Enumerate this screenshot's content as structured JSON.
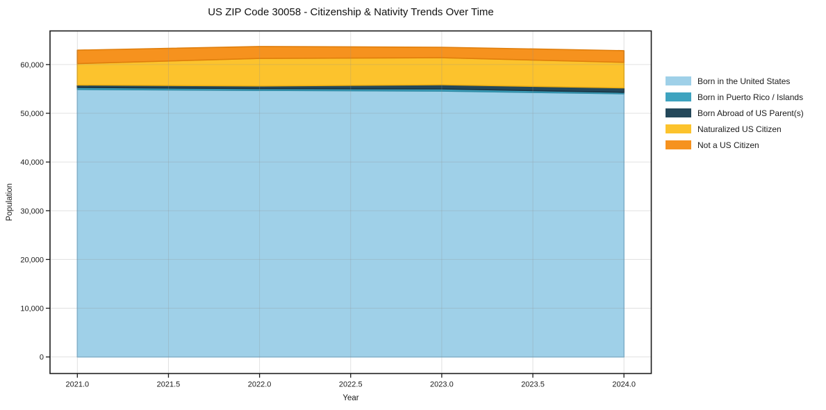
{
  "title": "US ZIP Code 30058 - Citizenship & Nativity Trends Over Time",
  "chart_data": {
    "type": "area",
    "stacked": true,
    "title": "US ZIP Code 30058 - Citizenship & Nativity Trends Over Time",
    "xlabel": "Year",
    "ylabel": "Population",
    "x": [
      2021,
      2022,
      2023,
      2024
    ],
    "series": [
      {
        "id": "born-in-us",
        "name": "Born in the United States",
        "color": "#9FD0E8",
        "edge": "#83BBD9",
        "values": [
          54900,
          54700,
          54550,
          54000
        ]
      },
      {
        "id": "born-in-pr-islands",
        "name": "Born in Puerto Rico / Islands",
        "color": "#3EA3BF",
        "edge": "#2F8BA5",
        "values": [
          400,
          350,
          450,
          300
        ]
      },
      {
        "id": "born-abroad-us-parent",
        "name": "Born Abroad of US Parent(s)",
        "color": "#24485A",
        "edge": "#193341",
        "values": [
          500,
          550,
          850,
          900
        ]
      },
      {
        "id": "naturalized-citizen",
        "name": "Naturalized US Citizen",
        "color": "#FCC32D",
        "edge": "#EDAE13",
        "values": [
          4400,
          5650,
          5550,
          5250
        ]
      },
      {
        "id": "not-us-citizen",
        "name": "Not a US Citizen",
        "color": "#F6921E",
        "edge": "#E07E0C",
        "values": [
          2750,
          2450,
          2150,
          2400
        ]
      }
    ],
    "xticks": [
      2021.0,
      2021.5,
      2022.0,
      2022.5,
      2023.0,
      2023.5,
      2024.0
    ],
    "xtick_labels": [
      "2021.0",
      "2021.5",
      "2022.0",
      "2022.5",
      "2023.0",
      "2023.5",
      "2024.0"
    ],
    "yticks": [
      0,
      10000,
      20000,
      30000,
      40000,
      50000,
      60000
    ],
    "ytick_labels": [
      "0",
      "10,000",
      "20,000",
      "30,000",
      "40,000",
      "50,000",
      "60,000"
    ],
    "xlim": [
      2020.85,
      2024.15
    ],
    "ylim": [
      -3400,
      66900
    ],
    "grid": true,
    "legend_position": "right-outside"
  },
  "colors": {
    "background": "#ffffff",
    "spine": "#1a1a1a",
    "grid": "#e5e5e5",
    "text": "#1a1a1a"
  }
}
